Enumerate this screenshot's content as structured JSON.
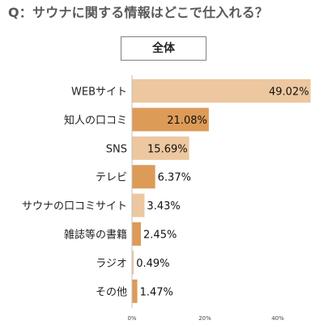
{
  "question": "Q：サウナに関する情報はどこで仕入れる？",
  "subtitle": "全体",
  "chart_data": {
    "type": "bar",
    "orientation": "horizontal",
    "title": "Q：サウナに関する情報はどこで仕入れる？",
    "subtitle": "全体",
    "categories": [
      "WEBサイト",
      "知人の口コミ",
      "SNS",
      "テレビ",
      "サウナの口コミサイト",
      "雑誌等の書籍",
      "ラジオ",
      "その他"
    ],
    "values": [
      49.02,
      21.08,
      15.69,
      6.37,
      3.43,
      2.45,
      0.49,
      1.47
    ],
    "value_labels": [
      "49.02%",
      "21.08%",
      "15.69%",
      "6.37%",
      "3.43%",
      "2.45%",
      "0.49%",
      "1.47%"
    ],
    "xlim": [
      0,
      50
    ],
    "x_ticks": [
      "0%",
      "20%",
      "40%"
    ],
    "x_tick_values": [
      0,
      20,
      40
    ],
    "grid": false,
    "legend": "none",
    "colors": {
      "light": "#edc7a0",
      "dark": "#dd9b58",
      "axis": "#bfbfbf"
    }
  }
}
